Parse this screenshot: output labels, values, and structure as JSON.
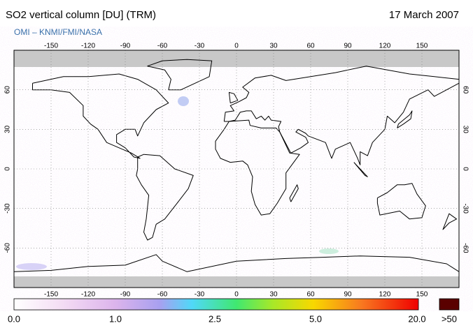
{
  "header": {
    "title": "SO2 vertical column [DU] (TRM)",
    "date": "17 March 2007",
    "subtitle": "OMI  –  KNMI/FMI/NASA"
  },
  "map": {
    "lon_ticks": [
      -150,
      -120,
      -90,
      -60,
      -30,
      0,
      30,
      60,
      90,
      120,
      150
    ],
    "lat_ticks": [
      60,
      30,
      0,
      -30,
      -60
    ]
  },
  "colorbar": {
    "labels": [
      "0.0",
      "1.0",
      "2.5",
      "5.0",
      "20.0",
      ">50"
    ]
  }
}
